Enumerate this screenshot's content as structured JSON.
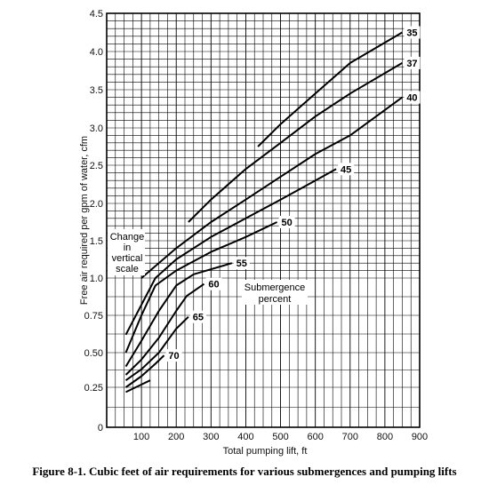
{
  "caption": "Figure 8-1.  Cubic feet of air requirements for various submergences and pumping lifts",
  "chart_data": {
    "type": "line",
    "xlabel": "Total pumping lift, ft",
    "ylabel": "Free air required per gpm of water, cfm",
    "xlim": [
      0,
      900
    ],
    "ylim": [
      0,
      4.5
    ],
    "x_ticks": [
      "100",
      "200",
      "300",
      "400",
      "500",
      "600",
      "700",
      "800",
      "900"
    ],
    "y_ticks": [
      "0.25",
      "0.50",
      "0.75",
      "1.0",
      "1.5",
      "2.0",
      "2.5",
      "3.0",
      "3.5",
      "4.0",
      "4.5"
    ],
    "y_zero_label": "0",
    "grid": true,
    "series": [
      {
        "name": "35",
        "x": [
          435,
          500,
          600,
          700,
          850
        ],
        "y": [
          2.75,
          3.05,
          3.45,
          3.85,
          4.25
        ]
      },
      {
        "name": "37",
        "x": [
          235,
          300,
          400,
          500,
          600,
          700,
          850
        ],
        "y": [
          1.75,
          2.05,
          2.45,
          2.8,
          3.15,
          3.45,
          3.85
        ]
      },
      {
        "name": "40",
        "x": [
          100,
          200,
          300,
          400,
          500,
          600,
          700,
          850
        ],
        "y": [
          1.0,
          1.4,
          1.75,
          2.05,
          2.35,
          2.65,
          2.9,
          3.4
        ]
      },
      {
        "name": "45",
        "x": [
          55,
          140,
          200,
          300,
          400,
          500,
          600,
          660
        ],
        "y": [
          0.62,
          1.0,
          1.25,
          1.55,
          1.8,
          2.05,
          2.3,
          2.45
        ]
      },
      {
        "name": "50",
        "x": [
          55,
          100,
          140,
          200,
          300,
          400,
          490
        ],
        "y": [
          0.5,
          0.75,
          0.95,
          1.1,
          1.35,
          1.55,
          1.75
        ]
      },
      {
        "name": "55",
        "x": [
          55,
          100,
          150,
          200,
          250,
          360
        ],
        "y": [
          0.4,
          0.58,
          0.78,
          0.95,
          1.05,
          1.2
        ]
      },
      {
        "name": "60",
        "x": [
          55,
          100,
          150,
          200,
          230,
          280
        ],
        "y": [
          0.34,
          0.45,
          0.6,
          0.78,
          0.88,
          0.96
        ]
      },
      {
        "name": "65",
        "x": [
          55,
          100,
          150,
          200,
          235
        ],
        "y": [
          0.3,
          0.38,
          0.5,
          0.66,
          0.74
        ]
      },
      {
        "name": "70",
        "x": [
          55,
          100,
          140,
          165
        ],
        "y": [
          0.25,
          0.33,
          0.42,
          0.48
        ]
      },
      {
        "name": "",
        "x": [
          55,
          100,
          125
        ],
        "y": [
          0.22,
          0.27,
          0.3
        ]
      }
    ],
    "annotations": {
      "vertical_scale_note": [
        "Change",
        "in",
        "vertical",
        "scale"
      ],
      "submergence_note": [
        "Submergence",
        "percent"
      ]
    }
  }
}
